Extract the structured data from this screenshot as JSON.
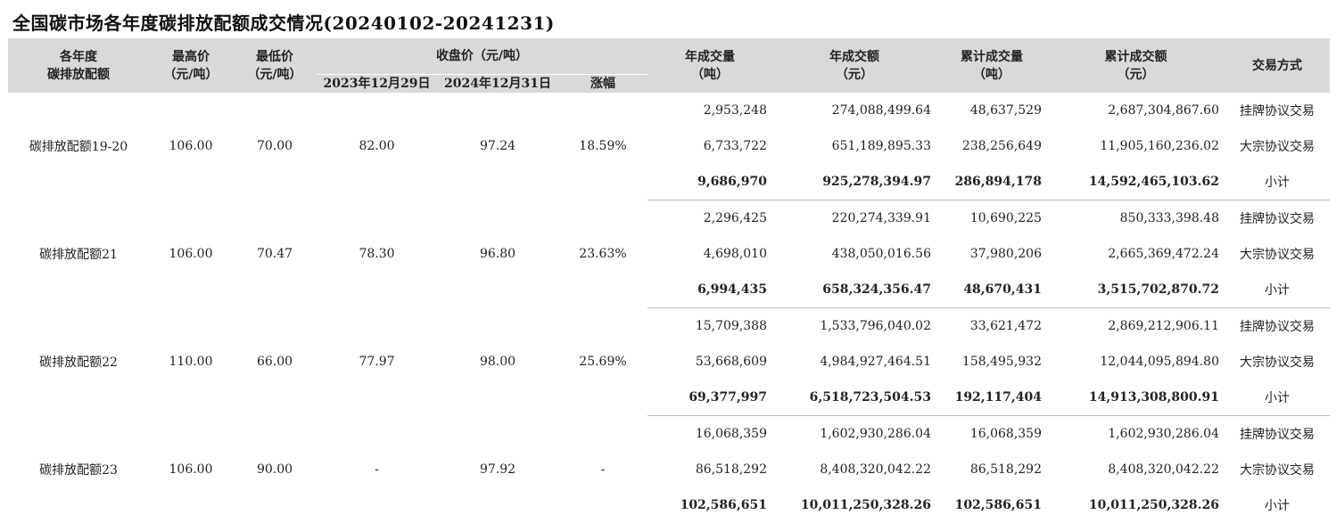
{
  "title": "全国碳市场各年度碳排放配额成交情况(20240102-20241231)",
  "headers": {
    "quota_line1": "各年度",
    "quota_line2": "碳排放配额",
    "high_line1": "最高价",
    "high_line2": "（元/吨）",
    "low_line1": "最低价",
    "low_line2": "（元/吨）",
    "close_group": "收盘价（元/吨）",
    "close_2023": "2023年12月29日",
    "close_2024": "2024年12月31日",
    "change": "涨幅",
    "year_vol_line1": "年成交量",
    "year_vol_line2": "（吨）",
    "year_amt_line1": "年成交额",
    "year_amt_line2": "（元）",
    "cum_vol_line1": "累计成交量",
    "cum_vol_line2": "（吨）",
    "cum_amt_line1": "累计成交额",
    "cum_amt_line2": "（元）",
    "method": "交易方式"
  },
  "groups": [
    {
      "quota": "碳排放配额19-20",
      "high": "106.00",
      "low": "70.00",
      "close_2023": "82.00",
      "close_2024": "97.24",
      "change": "18.59%",
      "rows": [
        {
          "year_vol": "2,953,248",
          "year_amt": "274,088,499.64",
          "cum_vol": "48,637,529",
          "cum_amt": "2,687,304,867.60",
          "method": "挂牌协议交易"
        },
        {
          "year_vol": "6,733,722",
          "year_amt": "651,189,895.33",
          "cum_vol": "238,256,649",
          "cum_amt": "11,905,160,236.02",
          "method": "大宗协议交易"
        },
        {
          "year_vol": "9,686,970",
          "year_amt": "925,278,394.97",
          "cum_vol": "286,894,178",
          "cum_amt": "14,592,465,103.62",
          "method": "小计"
        }
      ]
    },
    {
      "quota": "碳排放配额21",
      "high": "106.00",
      "low": "70.47",
      "close_2023": "78.30",
      "close_2024": "96.80",
      "change": "23.63%",
      "rows": [
        {
          "year_vol": "2,296,425",
          "year_amt": "220,274,339.91",
          "cum_vol": "10,690,225",
          "cum_amt": "850,333,398.48",
          "method": "挂牌协议交易"
        },
        {
          "year_vol": "4,698,010",
          "year_amt": "438,050,016.56",
          "cum_vol": "37,980,206",
          "cum_amt": "2,665,369,472.24",
          "method": "大宗协议交易"
        },
        {
          "year_vol": "6,994,435",
          "year_amt": "658,324,356.47",
          "cum_vol": "48,670,431",
          "cum_amt": "3,515,702,870.72",
          "method": "小计"
        }
      ]
    },
    {
      "quota": "碳排放配额22",
      "high": "110.00",
      "low": "66.00",
      "close_2023": "77.97",
      "close_2024": "98.00",
      "change": "25.69%",
      "rows": [
        {
          "year_vol": "15,709,388",
          "year_amt": "1,533,796,040.02",
          "cum_vol": "33,621,472",
          "cum_amt": "2,869,212,906.11",
          "method": "挂牌协议交易"
        },
        {
          "year_vol": "53,668,609",
          "year_amt": "4,984,927,464.51",
          "cum_vol": "158,495,932",
          "cum_amt": "12,044,095,894.80",
          "method": "大宗协议交易"
        },
        {
          "year_vol": "69,377,997",
          "year_amt": "6,518,723,504.53",
          "cum_vol": "192,117,404",
          "cum_amt": "14,913,308,800.91",
          "method": "小计"
        }
      ]
    },
    {
      "quota": "碳排放配额23",
      "high": "106.00",
      "low": "90.00",
      "close_2023": "-",
      "close_2024": "97.92",
      "change": "-",
      "rows": [
        {
          "year_vol": "16,068,359",
          "year_amt": "1,602,930,286.04",
          "cum_vol": "16,068,359",
          "cum_amt": "1,602,930,286.04",
          "method": "挂牌协议交易"
        },
        {
          "year_vol": "86,518,292",
          "year_amt": "8,408,320,042.22",
          "cum_vol": "86,518,292",
          "cum_amt": "8,408,320,042.22",
          "method": "大宗协议交易"
        },
        {
          "year_vol": "102,586,651",
          "year_amt": "10,011,250,328.26",
          "cum_vol": "102,586,651",
          "cum_amt": "10,011,250,328.26",
          "method": "小计"
        }
      ]
    }
  ]
}
